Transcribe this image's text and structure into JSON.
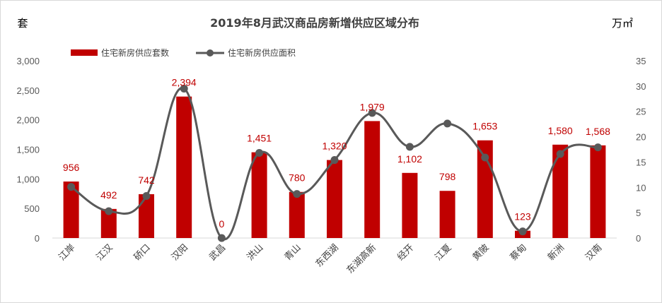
{
  "chart_data": {
    "type": "bar+line",
    "title": "2019年8月武汉商品房新增供应区域分布",
    "left_unit": "套",
    "right_unit": "万㎡",
    "categories": [
      "江岸",
      "江汉",
      "硚口",
      "汉阳",
      "武昌",
      "洪山",
      "青山",
      "东西湖",
      "东湖高新",
      "经开",
      "江夏",
      "黄陂",
      "蔡甸",
      "新洲",
      "汉南"
    ],
    "series": [
      {
        "name": "住宅新房供应套数",
        "type": "bar",
        "axis": "left",
        "color": "#c00000",
        "values": [
          956,
          492,
          742,
          2394,
          0,
          1451,
          780,
          1320,
          1979,
          1102,
          798,
          1653,
          123,
          1580,
          1568
        ],
        "labels": [
          "956",
          "492",
          "742",
          "2,394",
          "0",
          "1,451",
          "780",
          "1,320",
          "1,979",
          "1,102",
          "798",
          "1,653",
          "123",
          "1,580",
          "1,568"
        ]
      },
      {
        "name": "住宅新房供应面积",
        "type": "line",
        "axis": "right",
        "color": "#595959",
        "values": [
          10.1,
          5.3,
          8.3,
          29.5,
          0,
          16.8,
          8.7,
          15.4,
          24.7,
          18.0,
          22.6,
          15.9,
          1.3,
          16.6,
          17.9
        ]
      }
    ],
    "left_axis": {
      "ylim": [
        0,
        3000
      ],
      "ticks": [
        0,
        500,
        1000,
        1500,
        2000,
        2500,
        3000
      ],
      "tick_labels": [
        "0",
        "500",
        "1,000",
        "1,500",
        "2,000",
        "2,500",
        "3,000"
      ]
    },
    "right_axis": {
      "ylim": [
        0,
        35
      ],
      "ticks": [
        0,
        5,
        10,
        15,
        20,
        25,
        30,
        35
      ],
      "tick_labels": [
        "0",
        "5",
        "10",
        "15",
        "20",
        "25",
        "30",
        "35"
      ]
    },
    "legend_position": "top-left",
    "grid": false
  }
}
